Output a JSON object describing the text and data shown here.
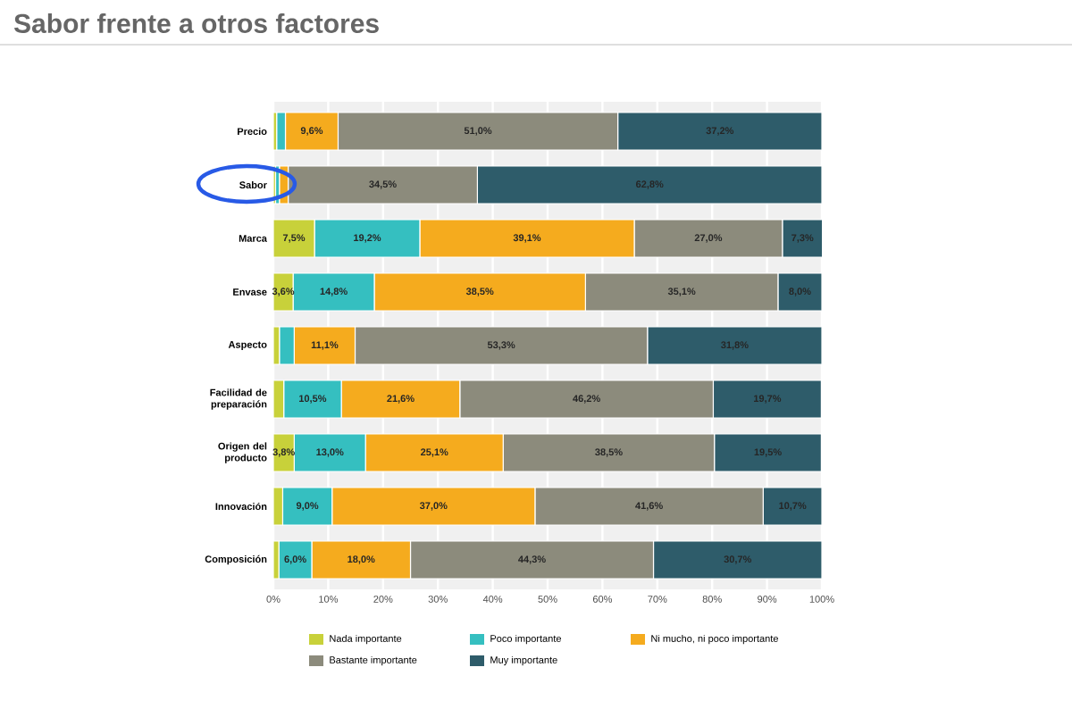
{
  "chart_data": {
    "type": "bar",
    "orientation": "horizontal",
    "stacked": true,
    "title": "Sabor frente a otros factores",
    "categories": [
      "Precio",
      "Sabor",
      "Marca",
      "Envase",
      "Aspecto",
      "Facilidad de preparación",
      "Origen del producto",
      "Innovación",
      "Composición"
    ],
    "series": [
      {
        "name": "Nada importante",
        "color": "#c8d13a",
        "values": [
          0.6,
          0.4,
          7.5,
          3.6,
          1.1,
          1.9,
          3.8,
          1.7,
          1.0
        ],
        "value_labels": [
          null,
          null,
          "7,5%",
          "3,6%",
          null,
          null,
          "3,8%",
          null,
          null
        ]
      },
      {
        "name": "Poco importante",
        "color": "#35bfc0",
        "values": [
          1.6,
          0.7,
          19.2,
          14.8,
          2.7,
          10.5,
          13.0,
          9.0,
          6.0
        ],
        "value_labels": [
          null,
          null,
          "19,2%",
          "14,8%",
          null,
          "10,5%",
          "13,0%",
          "9,0%",
          "6,0%"
        ]
      },
      {
        "name": "Ni mucho, ni poco importante",
        "color": "#f5ab1e",
        "values": [
          9.6,
          1.6,
          39.1,
          38.5,
          11.1,
          21.6,
          25.1,
          37.0,
          18.0
        ],
        "value_labels": [
          "9,6%",
          null,
          "39,1%",
          "38,5%",
          "11,1%",
          "21,6%",
          "25,1%",
          "37,0%",
          "18,0%"
        ]
      },
      {
        "name": "Bastante importante",
        "color": "#8c8b7c",
        "values": [
          51.0,
          34.5,
          27.0,
          35.1,
          53.3,
          46.2,
          38.5,
          41.6,
          44.3
        ],
        "value_labels": [
          "51,0%",
          "34,5%",
          "27,0%",
          "35,1%",
          "53,3%",
          "46,2%",
          "38,5%",
          "41,6%",
          "44,3%"
        ]
      },
      {
        "name": "Muy importante",
        "color": "#2e5c6a",
        "values": [
          37.2,
          62.8,
          7.3,
          8.0,
          31.8,
          19.7,
          19.5,
          10.7,
          30.7
        ],
        "value_labels": [
          "37,2%",
          "62,8%",
          "7,3%",
          "8,0%",
          "31,8%",
          "19,7%",
          "19,5%",
          "10,7%",
          "30,7%"
        ]
      }
    ],
    "xlim": [
      0,
      100
    ],
    "xticks": [
      {
        "value": 0,
        "label": "0%"
      },
      {
        "value": 10,
        "label": "10%"
      },
      {
        "value": 20,
        "label": "20%"
      },
      {
        "value": 30,
        "label": "30%"
      },
      {
        "value": 40,
        "label": "40%"
      },
      {
        "value": 50,
        "label": "50%"
      },
      {
        "value": 60,
        "label": "60%"
      },
      {
        "value": 70,
        "label": "70%"
      },
      {
        "value": 80,
        "label": "80%"
      },
      {
        "value": 90,
        "label": "90%"
      },
      {
        "value": 100,
        "label": "100%"
      }
    ],
    "grid": "x",
    "legend": "bottom"
  }
}
